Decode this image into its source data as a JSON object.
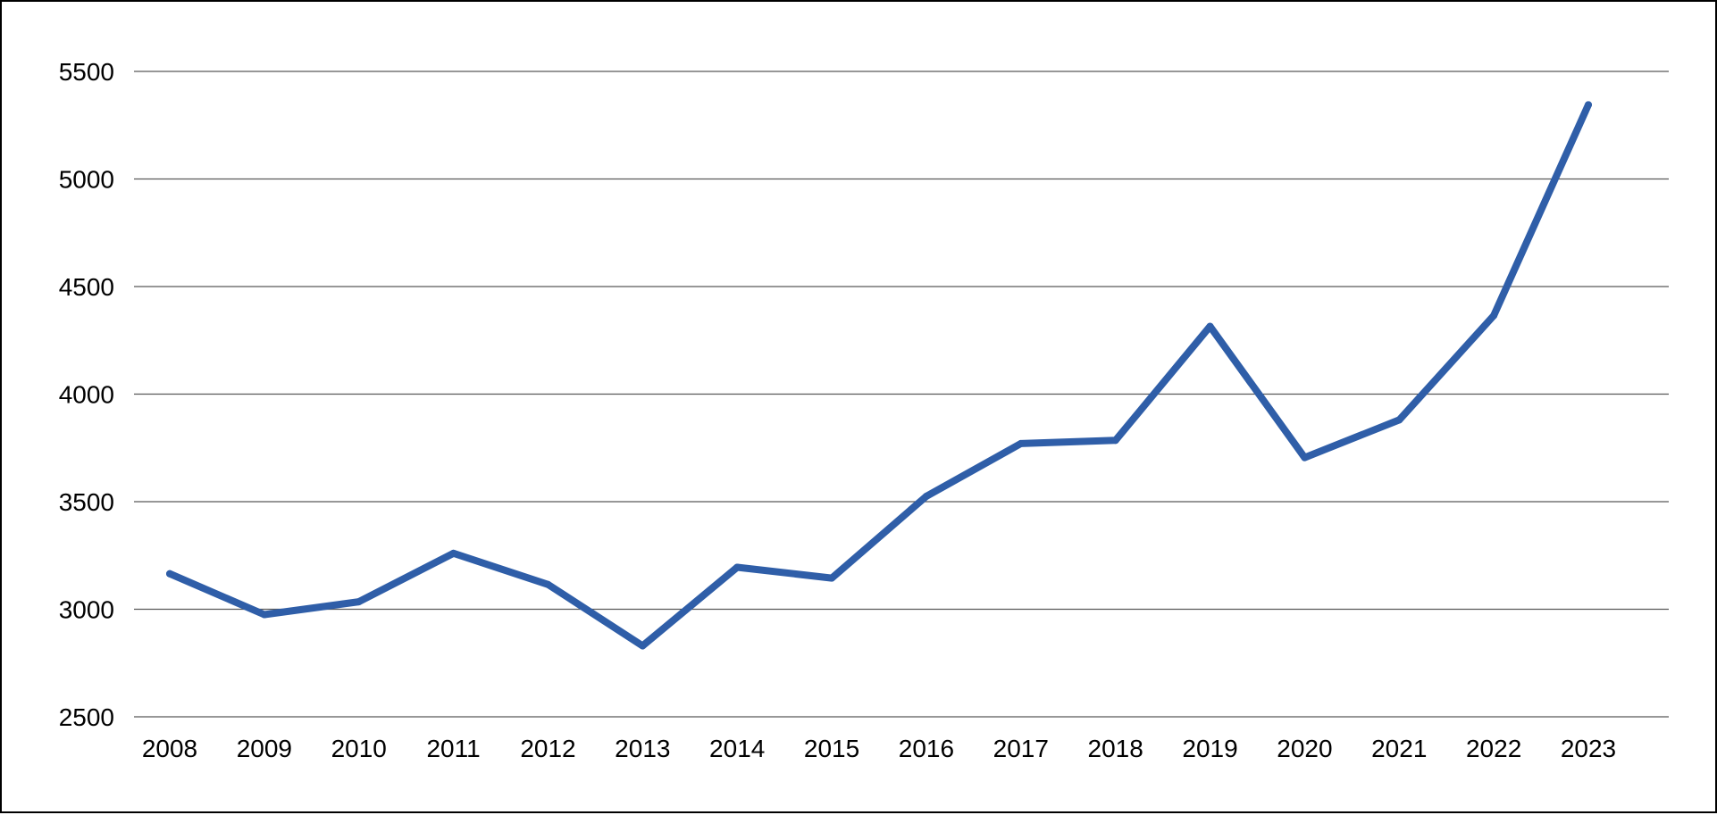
{
  "chart_data": {
    "type": "line",
    "title": "",
    "xlabel": "",
    "ylabel": "",
    "categories": [
      "2008",
      "2009",
      "2010",
      "2011",
      "2012",
      "2013",
      "2014",
      "2015",
      "2016",
      "2017",
      "2018",
      "2019",
      "2020",
      "2021",
      "2022",
      "2023"
    ],
    "series": [
      {
        "values": [
          3165,
          2975,
          3035,
          3260,
          3115,
          2830,
          3195,
          3145,
          3525,
          3770,
          3785,
          4315,
          3705,
          3880,
          4365,
          5345
        ],
        "color": "#2f5ea8"
      }
    ],
    "ylim": [
      2500,
      5500
    ],
    "yticks": [
      "2500",
      "3000",
      "3500",
      "4000",
      "4500",
      "5000",
      "5500"
    ],
    "grid": true,
    "legend": "none"
  }
}
